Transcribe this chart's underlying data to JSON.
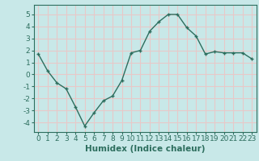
{
  "x": [
    0,
    1,
    2,
    3,
    4,
    5,
    6,
    7,
    8,
    9,
    10,
    11,
    12,
    13,
    14,
    15,
    16,
    17,
    18,
    19,
    20,
    21,
    22,
    23
  ],
  "y": [
    1.7,
    0.3,
    -0.7,
    -1.2,
    -2.7,
    -4.3,
    -3.2,
    -2.2,
    -1.8,
    -0.5,
    1.8,
    2.0,
    3.6,
    4.4,
    5.0,
    5.0,
    3.9,
    3.2,
    1.7,
    1.9,
    1.8,
    1.8,
    1.8,
    1.3
  ],
  "line_color": "#2d6e5e",
  "marker": "+",
  "bg_color": "#c8e8e8",
  "grid_color": "#e8c8c8",
  "xlabel": "Humidex (Indice chaleur)",
  "ylim": [
    -4.8,
    5.8
  ],
  "xlim": [
    -0.5,
    23.5
  ],
  "yticks": [
    -4,
    -3,
    -2,
    -1,
    0,
    1,
    2,
    3,
    4,
    5
  ],
  "xticks": [
    0,
    1,
    2,
    3,
    4,
    5,
    6,
    7,
    8,
    9,
    10,
    11,
    12,
    13,
    14,
    15,
    16,
    17,
    18,
    19,
    20,
    21,
    22,
    23
  ],
  "xlabel_color": "#2d6e5e",
  "tick_color": "#2d6e5e",
  "spine_color": "#2d6e5e",
  "font_size_xlabel": 7.5,
  "font_size_ticks": 6.5,
  "line_width": 1.0,
  "marker_size": 3.5,
  "marker_edge_width": 1.0
}
